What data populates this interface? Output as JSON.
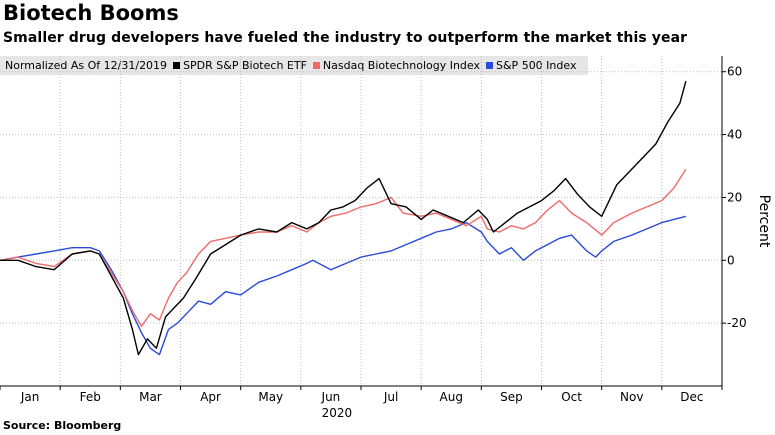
{
  "title": "Biotech Booms",
  "subtitle": "Smaller drug developers have fueled the industry to outperform the market this year",
  "source": "Source: Bloomberg",
  "legend_note": "Normalized As Of 12/31/2019",
  "chart_data": {
    "type": "line",
    "ylabel": "Percent",
    "xlabel": "2020",
    "ylim": [
      -40,
      65
    ],
    "yticks": [
      -20,
      0,
      20,
      40,
      60
    ],
    "x_range": [
      0,
      12
    ],
    "months": [
      "Jan",
      "Feb",
      "Mar",
      "Apr",
      "May",
      "Jun",
      "Jul",
      "Aug",
      "Sep",
      "Oct",
      "Nov",
      "Dec"
    ],
    "grid": true,
    "legend_position": "top",
    "series": [
      {
        "name": "SPDR S&P Biotech ETF",
        "color": "#000000",
        "points": [
          [
            0,
            0
          ],
          [
            0.3,
            0
          ],
          [
            0.6,
            -2
          ],
          [
            0.9,
            -3
          ],
          [
            1.2,
            2
          ],
          [
            1.5,
            3
          ],
          [
            1.65,
            2
          ],
          [
            1.85,
            -5
          ],
          [
            2.05,
            -12
          ],
          [
            2.2,
            -22
          ],
          [
            2.3,
            -30
          ],
          [
            2.45,
            -25
          ],
          [
            2.6,
            -28
          ],
          [
            2.75,
            -18
          ],
          [
            2.9,
            -15
          ],
          [
            3.05,
            -12
          ],
          [
            3.25,
            -6
          ],
          [
            3.5,
            2
          ],
          [
            3.75,
            5
          ],
          [
            4.0,
            8
          ],
          [
            4.3,
            10
          ],
          [
            4.6,
            9
          ],
          [
            4.85,
            12
          ],
          [
            5.1,
            10
          ],
          [
            5.3,
            12
          ],
          [
            5.5,
            16
          ],
          [
            5.7,
            17
          ],
          [
            5.9,
            19
          ],
          [
            6.1,
            23
          ],
          [
            6.3,
            26
          ],
          [
            6.5,
            18
          ],
          [
            6.75,
            17
          ],
          [
            7.0,
            13
          ],
          [
            7.2,
            16
          ],
          [
            7.45,
            14
          ],
          [
            7.7,
            12
          ],
          [
            7.95,
            16
          ],
          [
            8.1,
            13
          ],
          [
            8.2,
            9
          ],
          [
            8.4,
            12
          ],
          [
            8.6,
            15
          ],
          [
            8.8,
            17
          ],
          [
            9.0,
            19
          ],
          [
            9.2,
            22
          ],
          [
            9.4,
            26
          ],
          [
            9.6,
            21
          ],
          [
            9.8,
            17
          ],
          [
            10.0,
            14
          ],
          [
            10.25,
            24
          ],
          [
            10.5,
            29
          ],
          [
            10.7,
            33
          ],
          [
            10.9,
            37
          ],
          [
            11.1,
            44
          ],
          [
            11.3,
            50
          ],
          [
            11.4,
            57
          ]
        ]
      },
      {
        "name": "Nasdaq Biotechnology Index",
        "color": "#f06a6a",
        "points": [
          [
            0,
            0
          ],
          [
            0.3,
            1
          ],
          [
            0.6,
            -1
          ],
          [
            0.9,
            -2
          ],
          [
            1.2,
            2
          ],
          [
            1.5,
            3
          ],
          [
            1.65,
            2
          ],
          [
            1.85,
            -4
          ],
          [
            2.05,
            -10
          ],
          [
            2.2,
            -16
          ],
          [
            2.35,
            -21
          ],
          [
            2.5,
            -17
          ],
          [
            2.65,
            -19
          ],
          [
            2.8,
            -12
          ],
          [
            2.95,
            -7
          ],
          [
            3.1,
            -4
          ],
          [
            3.3,
            2
          ],
          [
            3.5,
            6
          ],
          [
            3.75,
            7
          ],
          [
            4.0,
            8
          ],
          [
            4.3,
            9
          ],
          [
            4.6,
            9
          ],
          [
            4.85,
            11
          ],
          [
            5.1,
            9
          ],
          [
            5.3,
            12
          ],
          [
            5.5,
            14
          ],
          [
            5.75,
            15
          ],
          [
            6.0,
            17
          ],
          [
            6.25,
            18
          ],
          [
            6.5,
            20
          ],
          [
            6.7,
            15
          ],
          [
            7.0,
            14
          ],
          [
            7.25,
            15
          ],
          [
            7.5,
            13
          ],
          [
            7.75,
            11
          ],
          [
            8.0,
            14
          ],
          [
            8.1,
            10
          ],
          [
            8.3,
            9
          ],
          [
            8.5,
            11
          ],
          [
            8.7,
            10
          ],
          [
            8.9,
            12
          ],
          [
            9.1,
            16
          ],
          [
            9.3,
            19
          ],
          [
            9.5,
            15
          ],
          [
            9.75,
            12
          ],
          [
            10.0,
            8
          ],
          [
            10.2,
            12
          ],
          [
            10.5,
            15
          ],
          [
            10.75,
            17
          ],
          [
            11.0,
            19
          ],
          [
            11.2,
            23
          ],
          [
            11.4,
            29
          ]
        ]
      },
      {
        "name": "S&P 500 Index",
        "color": "#2a4bd7",
        "points": [
          [
            0,
            0
          ],
          [
            0.3,
            1
          ],
          [
            0.6,
            2
          ],
          [
            0.9,
            3
          ],
          [
            1.2,
            4
          ],
          [
            1.5,
            4
          ],
          [
            1.65,
            3
          ],
          [
            1.85,
            -3
          ],
          [
            2.05,
            -10
          ],
          [
            2.2,
            -17
          ],
          [
            2.35,
            -23
          ],
          [
            2.5,
            -28
          ],
          [
            2.65,
            -30
          ],
          [
            2.8,
            -22
          ],
          [
            2.95,
            -20
          ],
          [
            3.1,
            -17
          ],
          [
            3.3,
            -13
          ],
          [
            3.5,
            -14
          ],
          [
            3.75,
            -10
          ],
          [
            4.0,
            -11
          ],
          [
            4.3,
            -7
          ],
          [
            4.6,
            -5
          ],
          [
            4.85,
            -3
          ],
          [
            5.1,
            -1
          ],
          [
            5.2,
            0
          ],
          [
            5.5,
            -3
          ],
          [
            5.75,
            -1
          ],
          [
            6.0,
            1
          ],
          [
            6.25,
            2
          ],
          [
            6.5,
            3
          ],
          [
            6.75,
            5
          ],
          [
            7.0,
            7
          ],
          [
            7.25,
            9
          ],
          [
            7.5,
            10
          ],
          [
            7.75,
            12
          ],
          [
            8.0,
            9
          ],
          [
            8.1,
            6
          ],
          [
            8.3,
            2
          ],
          [
            8.5,
            4
          ],
          [
            8.7,
            0
          ],
          [
            8.9,
            3
          ],
          [
            9.1,
            5
          ],
          [
            9.3,
            7
          ],
          [
            9.5,
            8
          ],
          [
            9.75,
            3
          ],
          [
            9.9,
            1
          ],
          [
            10.0,
            3
          ],
          [
            10.2,
            6
          ],
          [
            10.5,
            8
          ],
          [
            10.75,
            10
          ],
          [
            11.0,
            12
          ],
          [
            11.2,
            13
          ],
          [
            11.4,
            14
          ]
        ]
      }
    ]
  }
}
